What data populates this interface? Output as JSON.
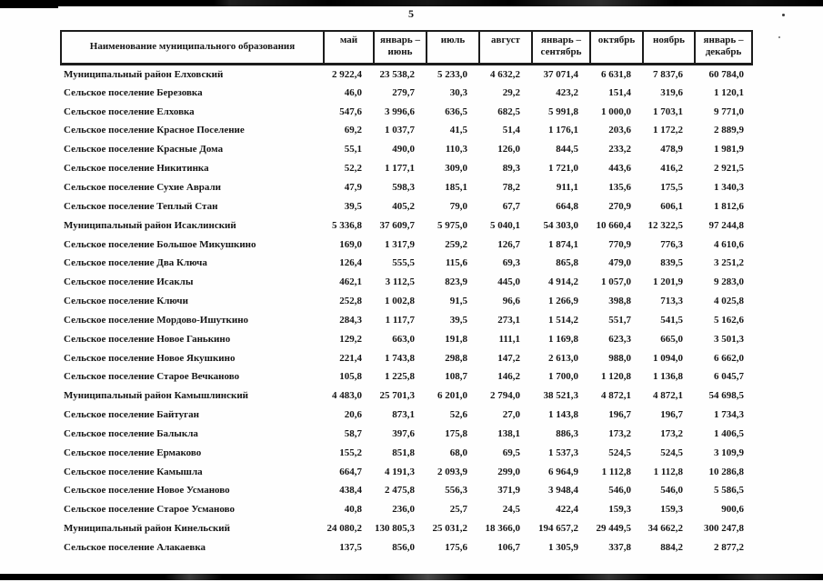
{
  "page": {
    "number": "5",
    "background_color": "#fefefe",
    "scan_bar_color": "#000000"
  },
  "table": {
    "name_header": "Наименование муниципального образования",
    "columns": [
      "май",
      "январь – июнь",
      "июль",
      "август",
      "январь – сентябрь",
      "октябрь",
      "ноябрь",
      "январь – декабрь"
    ],
    "rows": [
      {
        "name": "Муниципальный район Елховский",
        "type": "district",
        "values": [
          "2 922,4",
          "23 538,2",
          "5 233,0",
          "4 632,2",
          "37 071,4",
          "6 631,8",
          "7 837,6",
          "60 784,0"
        ]
      },
      {
        "name": "Сельское поселение Березовка",
        "type": "settlement",
        "values": [
          "46,0",
          "279,7",
          "30,3",
          "29,2",
          "423,2",
          "151,4",
          "319,6",
          "1 120,1"
        ]
      },
      {
        "name": "Сельское поселение Елховка",
        "type": "settlement",
        "values": [
          "547,6",
          "3 996,6",
          "636,5",
          "682,5",
          "5 991,8",
          "1 000,0",
          "1 703,1",
          "9 771,0"
        ]
      },
      {
        "name": "Сельское поселение Красное Поселение",
        "type": "settlement",
        "values": [
          "69,2",
          "1 037,7",
          "41,5",
          "51,4",
          "1 176,1",
          "203,6",
          "1 172,2",
          "2 889,9"
        ]
      },
      {
        "name": "Сельское поселение Красные Дома",
        "type": "settlement",
        "values": [
          "55,1",
          "490,0",
          "110,3",
          "126,0",
          "844,5",
          "233,2",
          "478,9",
          "1 981,9"
        ]
      },
      {
        "name": "Сельское поселение Никитинка",
        "type": "settlement",
        "values": [
          "52,2",
          "1 177,1",
          "309,0",
          "89,3",
          "1 721,0",
          "443,6",
          "416,2",
          "2 921,5"
        ]
      },
      {
        "name": "Сельское поселение Сухие Аврали",
        "type": "settlement",
        "values": [
          "47,9",
          "598,3",
          "185,1",
          "78,2",
          "911,1",
          "135,6",
          "175,5",
          "1 340,3"
        ]
      },
      {
        "name": "Сельское поселение Теплый Стан",
        "type": "settlement",
        "values": [
          "39,5",
          "405,2",
          "79,0",
          "67,7",
          "664,8",
          "270,9",
          "606,1",
          "1 812,6"
        ]
      },
      {
        "name": "Муниципальный район Исаклинский",
        "type": "district",
        "values": [
          "5 336,8",
          "37 609,7",
          "5 975,0",
          "5 040,1",
          "54 303,0",
          "10 660,4",
          "12 322,5",
          "97 244,8"
        ]
      },
      {
        "name": "Сельское поселение Большое Микушкино",
        "type": "settlement",
        "values": [
          "169,0",
          "1 317,9",
          "259,2",
          "126,7",
          "1 874,1",
          "770,9",
          "776,3",
          "4 610,6"
        ]
      },
      {
        "name": "Сельское поселение Два Ключа",
        "type": "settlement",
        "values": [
          "126,4",
          "555,5",
          "115,6",
          "69,3",
          "865,8",
          "479,0",
          "839,5",
          "3 251,2"
        ]
      },
      {
        "name": "Сельское поселение Исаклы",
        "type": "settlement",
        "values": [
          "462,1",
          "3 112,5",
          "823,9",
          "445,0",
          "4 914,2",
          "1 057,0",
          "1 201,9",
          "9 283,0"
        ]
      },
      {
        "name": "Сельское поселение Ключи",
        "type": "settlement",
        "values": [
          "252,8",
          "1 002,8",
          "91,5",
          "96,6",
          "1 266,9",
          "398,8",
          "713,3",
          "4 025,8"
        ]
      },
      {
        "name": "Сельское поселение Мордово-Ишуткино",
        "type": "settlement",
        "values": [
          "284,3",
          "1 117,7",
          "39,5",
          "273,1",
          "1 514,2",
          "551,7",
          "541,5",
          "5 162,6"
        ]
      },
      {
        "name": "Сельское поселение Новое Ганькино",
        "type": "settlement",
        "values": [
          "129,2",
          "663,0",
          "191,8",
          "111,1",
          "1 169,8",
          "623,3",
          "665,0",
          "3 501,3"
        ]
      },
      {
        "name": "Сельское поселение Новое Якушкино",
        "type": "settlement",
        "values": [
          "221,4",
          "1 743,8",
          "298,8",
          "147,2",
          "2 613,0",
          "988,0",
          "1 094,0",
          "6 662,0"
        ]
      },
      {
        "name": "Сельское поселение Старое Вечканово",
        "type": "settlement",
        "values": [
          "105,8",
          "1 225,8",
          "108,7",
          "146,2",
          "1 700,0",
          "1 120,8",
          "1 136,8",
          "6 045,7"
        ]
      },
      {
        "name": "Муниципальный район Камышлинский",
        "type": "district",
        "values": [
          "4 483,0",
          "25 701,3",
          "6 201,0",
          "2 794,0",
          "38 521,3",
          "4 872,1",
          "4 872,1",
          "54 698,5"
        ]
      },
      {
        "name": "Сельское поселение Байтуган",
        "type": "settlement",
        "values": [
          "20,6",
          "873,1",
          "52,6",
          "27,0",
          "1 143,8",
          "196,7",
          "196,7",
          "1 734,3"
        ]
      },
      {
        "name": "Сельское поселение Балыкла",
        "type": "settlement",
        "values": [
          "58,7",
          "397,6",
          "175,8",
          "138,1",
          "886,3",
          "173,2",
          "173,2",
          "1 406,5"
        ]
      },
      {
        "name": "Сельское поселение Ермаково",
        "type": "settlement",
        "values": [
          "155,2",
          "851,8",
          "68,0",
          "69,5",
          "1 537,3",
          "524,5",
          "524,5",
          "3 109,9"
        ]
      },
      {
        "name": "Сельское поселение Камышла",
        "type": "settlement",
        "values": [
          "664,7",
          "4 191,3",
          "2 093,9",
          "299,0",
          "6 964,9",
          "1 112,8",
          "1 112,8",
          "10 286,8"
        ]
      },
      {
        "name": "Сельское поселение Новое Усманово",
        "type": "settlement",
        "values": [
          "438,4",
          "2 475,8",
          "556,3",
          "371,9",
          "3 948,4",
          "546,0",
          "546,0",
          "5 586,5"
        ]
      },
      {
        "name": "Сельское поселение Старое Усманово",
        "type": "settlement",
        "values": [
          "40,8",
          "236,0",
          "25,7",
          "24,5",
          "422,4",
          "159,3",
          "159,3",
          "900,6"
        ]
      },
      {
        "name": "Муниципальный район Кинельский",
        "type": "district",
        "values": [
          "24 080,2",
          "130 805,3",
          "25 031,2",
          "18 366,0",
          "194 657,2",
          "29 449,5",
          "34 662,2",
          "300 247,8"
        ]
      },
      {
        "name": "Сельское поселение Алакаевка",
        "type": "settlement",
        "values": [
          "137,5",
          "856,0",
          "175,6",
          "106,7",
          "1 305,9",
          "337,8",
          "884,2",
          "2 877,2"
        ]
      }
    ]
  }
}
